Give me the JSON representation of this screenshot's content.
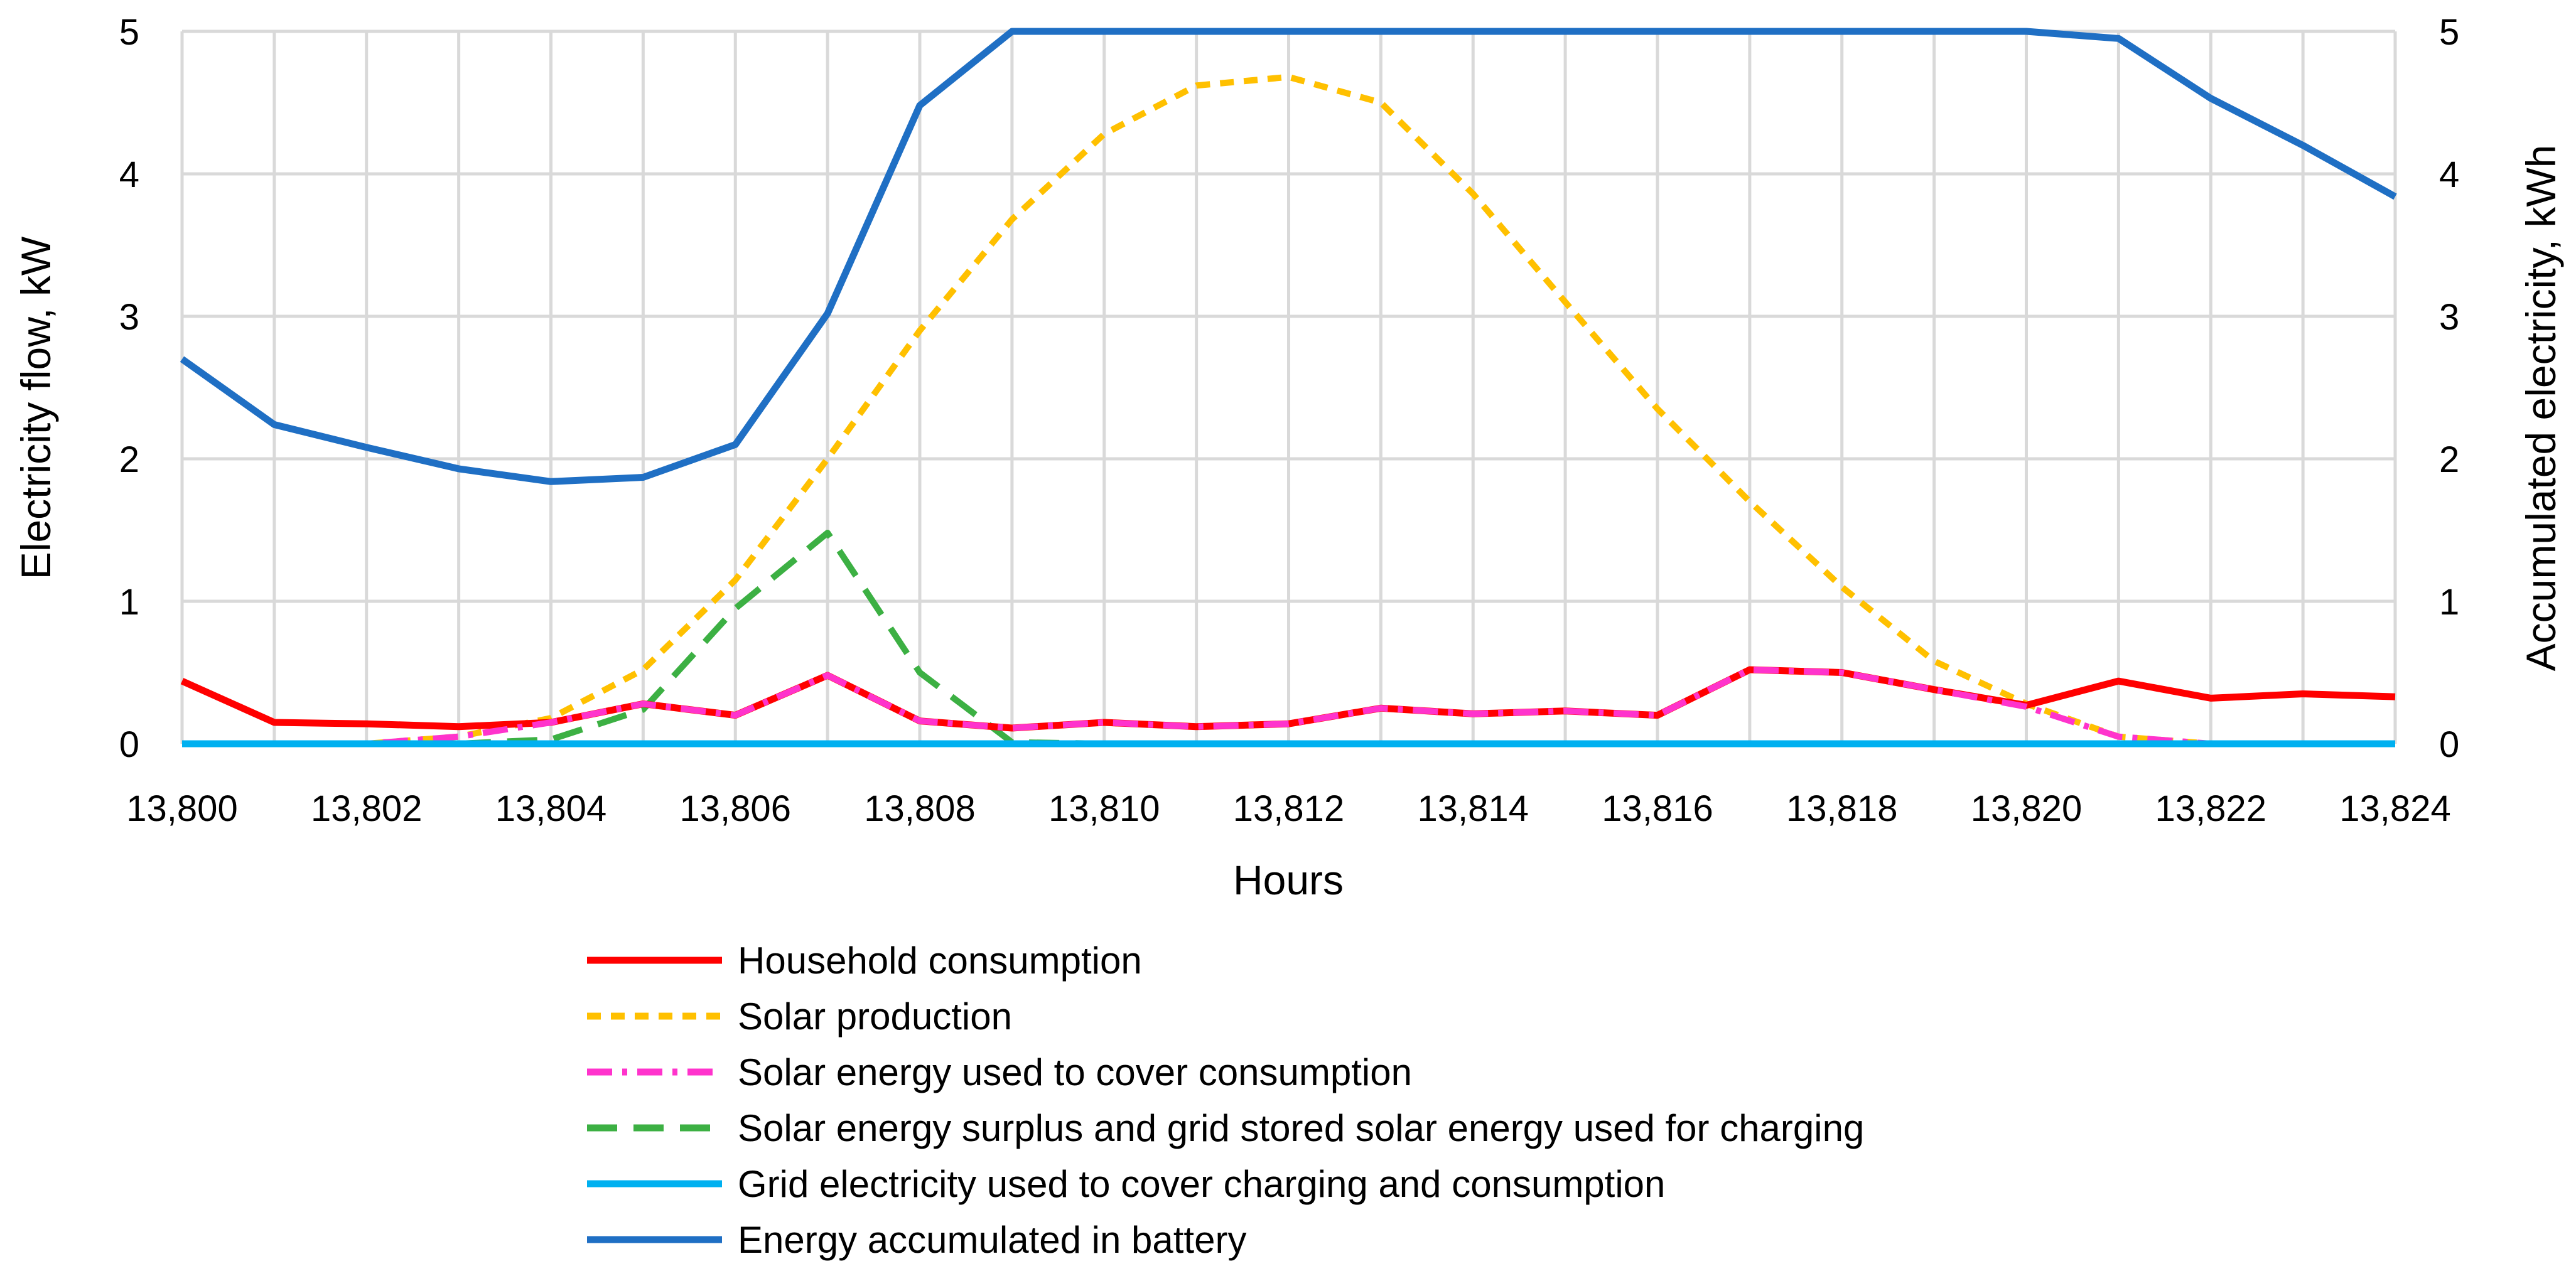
{
  "chart_data": {
    "type": "line",
    "title": "",
    "xlabel": "Hours",
    "ylabel": "Electricity flow, kW",
    "y2label": "Accumulated electricity, kWh",
    "xlim": [
      13800,
      13824
    ],
    "ylim": [
      0,
      5
    ],
    "y2lim": [
      0,
      5
    ],
    "grid": true,
    "legend_position": "bottom",
    "x_ticks": [
      "13,800",
      "13,802",
      "13,804",
      "13,806",
      "13,808",
      "13,810",
      "13,812",
      "13,814",
      "13,816",
      "13,818",
      "13,820",
      "13,822",
      "13,824"
    ],
    "y_ticks": [
      "0",
      "1",
      "2",
      "3",
      "4",
      "5"
    ],
    "y2_ticks": [
      "0",
      "1",
      "2",
      "3",
      "4",
      "5"
    ],
    "x": [
      13800,
      13801,
      13802,
      13803,
      13804,
      13805,
      13806,
      13807,
      13808,
      13809,
      13810,
      13811,
      13812,
      13813,
      13814,
      13815,
      13816,
      13817,
      13818,
      13819,
      13820,
      13821,
      13822,
      13823,
      13824
    ],
    "series": [
      {
        "name": "Household consumption",
        "color": "#ff0000",
        "dash": "solid",
        "axis": "left",
        "values": [
          0.44,
          0.15,
          0.14,
          0.12,
          0.15,
          0.28,
          0.2,
          0.48,
          0.16,
          0.11,
          0.15,
          0.12,
          0.14,
          0.25,
          0.21,
          0.23,
          0.2,
          0.52,
          0.5,
          0.38,
          0.27,
          0.44,
          0.32,
          0.35,
          0.33
        ]
      },
      {
        "name": "Solar production",
        "color": "#ffc000",
        "dash": "short-dash",
        "axis": "left",
        "values": [
          0,
          0,
          0,
          0.05,
          0.18,
          0.52,
          1.15,
          2.0,
          2.9,
          3.68,
          4.28,
          4.62,
          4.68,
          4.5,
          3.86,
          3.1,
          2.35,
          1.7,
          1.1,
          0.58,
          0.28,
          0.05,
          0,
          0,
          0
        ]
      },
      {
        "name": "Solar energy used to cover consumption",
        "color": "#ff33cc",
        "dash": "dash-dot",
        "axis": "left",
        "values": [
          0,
          0,
          0,
          0.05,
          0.15,
          0.28,
          0.2,
          0.48,
          0.16,
          0.11,
          0.15,
          0.12,
          0.14,
          0.25,
          0.21,
          0.23,
          0.2,
          0.52,
          0.5,
          0.38,
          0.26,
          0.05,
          0,
          0,
          0
        ]
      },
      {
        "name": "Solar energy surplus and grid stored solar energy used for charging",
        "color": "#3cb043",
        "dash": "long-dash",
        "axis": "left",
        "values": [
          0,
          0,
          0,
          0,
          0.03,
          0.24,
          0.95,
          1.48,
          0.5,
          0.01,
          0,
          0,
          0,
          0,
          0,
          0,
          0,
          0,
          0,
          0,
          0,
          0,
          0,
          0,
          0
        ]
      },
      {
        "name": "Grid electricity used to cover charging and consumption",
        "color": "#00b0f0",
        "dash": "solid",
        "axis": "left",
        "values": [
          0,
          0,
          0,
          0,
          0,
          0,
          0,
          0,
          0,
          0,
          0,
          0,
          0,
          0,
          0,
          0,
          0,
          0,
          0,
          0,
          0,
          0,
          0,
          0,
          0
        ]
      },
      {
        "name": "Energy accumulated in battery",
        "color": "#1f6fc4",
        "dash": "solid",
        "axis": "right",
        "values": [
          2.7,
          2.24,
          2.08,
          1.93,
          1.84,
          1.87,
          2.1,
          3.02,
          4.48,
          5.0,
          5.0,
          5.0,
          5.0,
          5.0,
          5.0,
          5.0,
          5.0,
          5.0,
          5.0,
          5.0,
          5.0,
          4.95,
          4.53,
          4.2,
          3.84
        ]
      }
    ]
  }
}
